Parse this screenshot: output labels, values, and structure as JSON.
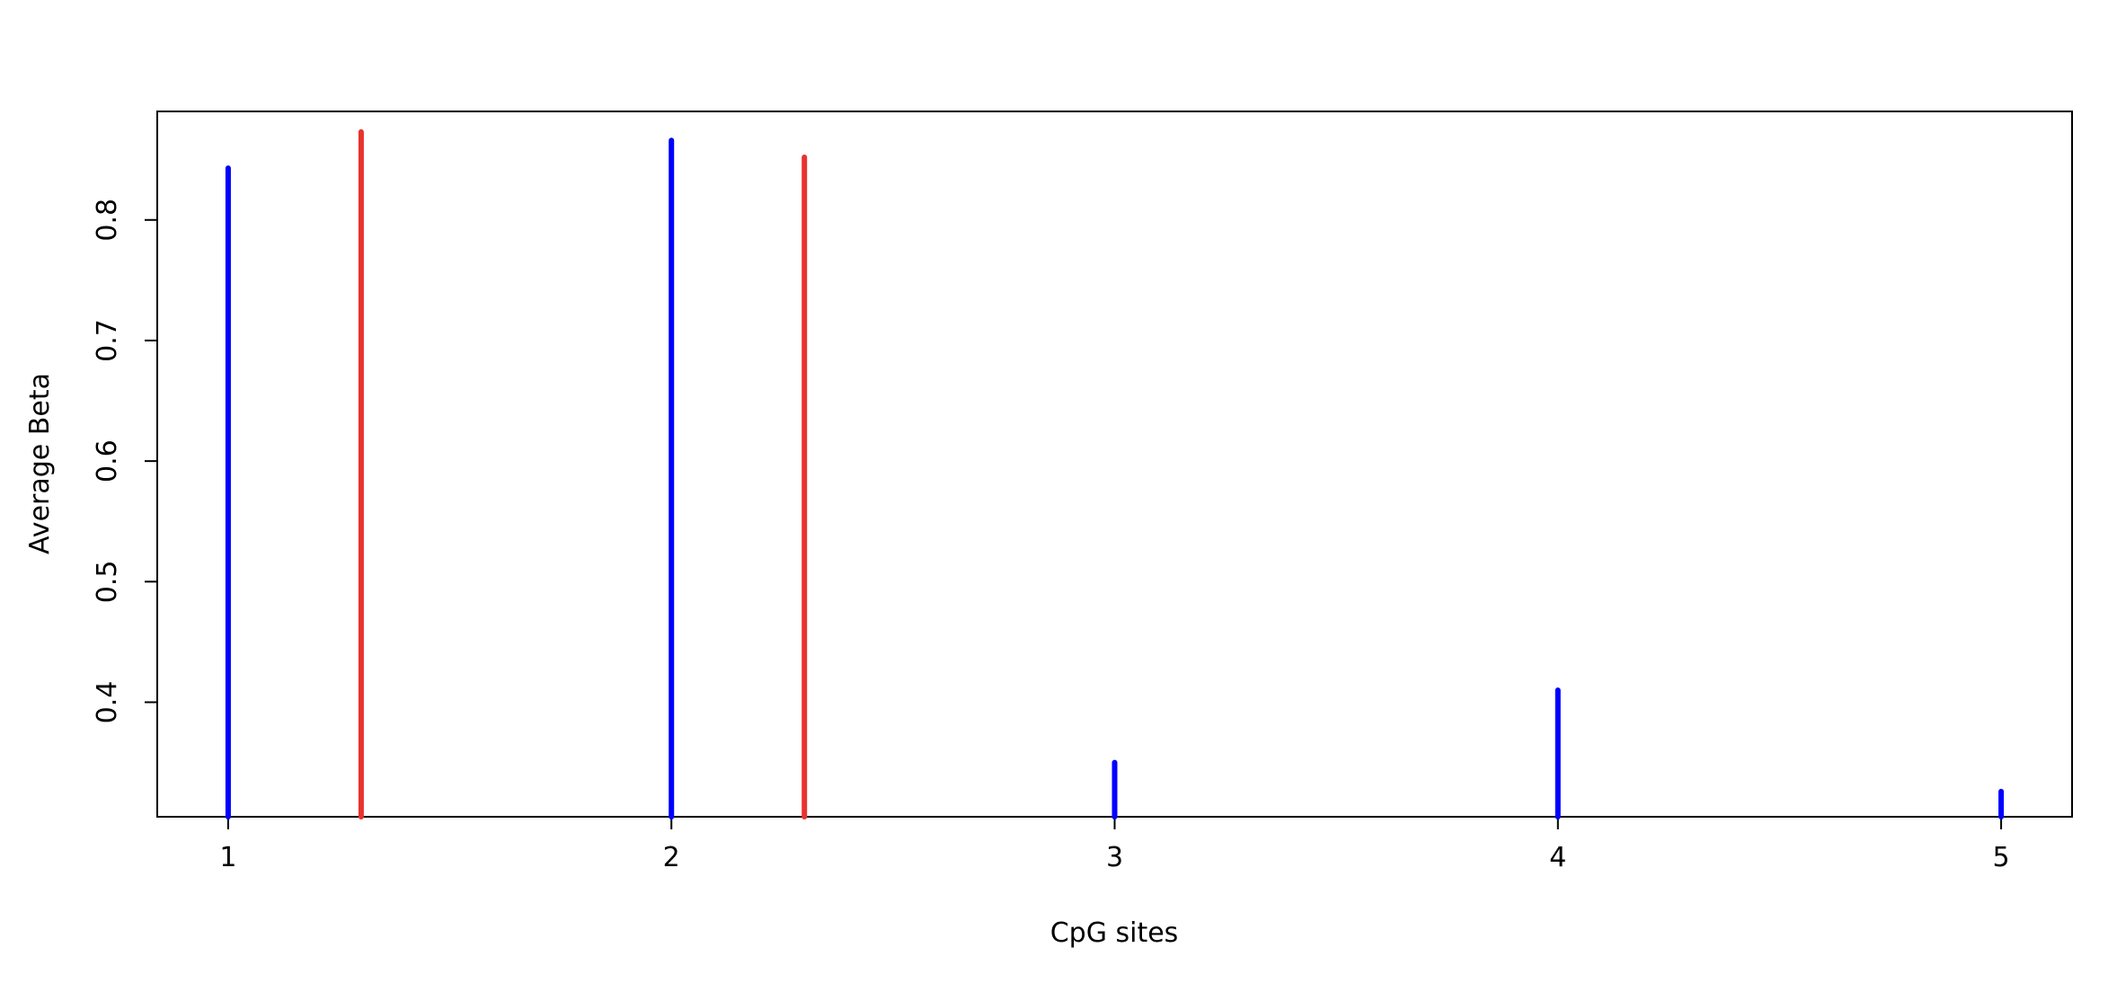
{
  "chart_data": {
    "type": "bar",
    "title": "",
    "xlabel": "CpG sites",
    "ylabel": "Average Beta",
    "xlim": [
      0.84,
      5.16
    ],
    "ylim": [
      0.305,
      0.89
    ],
    "x_ticks": [
      1,
      2,
      3,
      4,
      5
    ],
    "y_ticks": [
      0.4,
      0.5,
      0.6,
      0.7,
      0.8
    ],
    "grid": false,
    "legend": "none",
    "series": [
      {
        "color": "#0000ff",
        "points": [
          {
            "x": 1,
            "y": 0.843
          },
          {
            "x": 2,
            "y": 0.866
          },
          {
            "x": 3,
            "y": 0.35
          },
          {
            "x": 4,
            "y": 0.41
          },
          {
            "x": 5,
            "y": 0.326
          }
        ]
      },
      {
        "color": "#e8332e",
        "points": [
          {
            "x": 1.3,
            "y": 0.873
          },
          {
            "x": 2.3,
            "y": 0.852
          }
        ]
      }
    ]
  }
}
